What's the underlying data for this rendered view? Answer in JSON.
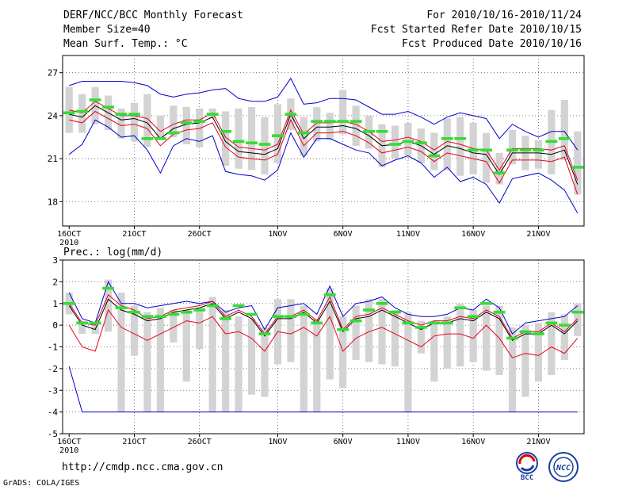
{
  "header": {
    "title": "DERF/NCC/BCC Monthly Forecast",
    "member_size": "Member Size=40",
    "variable": "Mean Surf. Temp.: °C",
    "forecast_period": "For 2010/10/16-2010/11/24",
    "fcst_started": "Fcst Started Refer Date 2010/10/15",
    "fcst_produced": "Fcst Produced Date 2010/10/16"
  },
  "footer": {
    "url": "http://cmdp.ncc.cma.gov.cn",
    "credit": "GrADS: COLA/IGES",
    "logo_left_text": "BCC",
    "logo_right_text": "NCC"
  },
  "colors": {
    "max_min_line": "#0000cc",
    "spread_line": "#e8001c",
    "mean_line": "#000000",
    "obs_marker": "#33dd33",
    "box": "#d3d3d3"
  },
  "chart_data": [
    {
      "id": "temp",
      "type": "box",
      "title": "",
      "ylabel": "Mean Surf. Temp.: °C",
      "ylim": [
        16.3,
        28.2
      ],
      "yticks": [
        18,
        21,
        24,
        27
      ],
      "xlim": [
        0,
        40
      ],
      "x_tick_labels": [
        {
          "x": 0.5,
          "label": "16OCT"
        },
        {
          "x": 5.5,
          "label": "21OCT"
        },
        {
          "x": 10.5,
          "label": "26OCT"
        },
        {
          "x": 16.5,
          "label": "1NOV"
        },
        {
          "x": 21.5,
          "label": "6NOV"
        },
        {
          "x": 26.5,
          "label": "11NOV"
        },
        {
          "x": 31.5,
          "label": "16NOV"
        },
        {
          "x": 36.5,
          "label": "21NOV"
        }
      ],
      "x_sub_label": "2010",
      "series": {
        "max": [
          26.1,
          26.4,
          26.4,
          26.4,
          26.4,
          26.3,
          26.1,
          25.5,
          25.3,
          25.5,
          25.6,
          25.8,
          25.9,
          25.2,
          25.0,
          25.0,
          25.3,
          26.6,
          24.8,
          24.9,
          25.2,
          25.2,
          25.1,
          24.6,
          24.1,
          24.1,
          24.3,
          23.9,
          23.4,
          23.9,
          24.2,
          24.0,
          23.8,
          22.4,
          23.4,
          22.9,
          22.5,
          22.9,
          22.9,
          21.6
        ],
        "upper": [
          24.4,
          24.2,
          25.0,
          24.5,
          24.0,
          24.0,
          23.8,
          22.9,
          23.4,
          23.7,
          23.7,
          24.2,
          22.5,
          21.8,
          21.7,
          21.6,
          22.0,
          24.4,
          22.7,
          23.5,
          23.5,
          23.6,
          23.4,
          22.9,
          22.2,
          22.3,
          22.5,
          22.2,
          21.6,
          22.2,
          22.0,
          21.7,
          21.6,
          20.2,
          21.7,
          21.7,
          21.7,
          21.6,
          21.9,
          19.5
        ],
        "mean": [
          24.1,
          23.9,
          24.7,
          24.2,
          23.7,
          23.8,
          23.5,
          22.4,
          23.1,
          23.4,
          23.5,
          23.9,
          22.2,
          21.5,
          21.4,
          21.3,
          21.7,
          24.1,
          22.4,
          23.2,
          23.2,
          23.3,
          23.1,
          22.6,
          21.9,
          22.0,
          22.2,
          21.9,
          21.3,
          21.9,
          21.7,
          21.4,
          21.3,
          19.9,
          21.4,
          21.4,
          21.4,
          21.3,
          21.6,
          19.2
        ],
        "lower": [
          23.7,
          23.5,
          24.3,
          23.8,
          23.3,
          23.4,
          23.1,
          21.9,
          22.7,
          23.0,
          23.1,
          23.5,
          21.8,
          21.1,
          21.0,
          20.9,
          21.3,
          23.7,
          21.9,
          22.8,
          22.8,
          22.9,
          22.6,
          22.1,
          21.4,
          21.6,
          21.8,
          21.5,
          20.8,
          21.4,
          21.2,
          21.0,
          20.8,
          19.3,
          20.9,
          20.9,
          20.9,
          20.8,
          21.1,
          18.5
        ],
        "min": [
          21.3,
          22.0,
          23.7,
          23.2,
          22.5,
          22.6,
          21.6,
          20.0,
          21.9,
          22.4,
          22.2,
          22.6,
          20.1,
          19.9,
          19.8,
          19.5,
          20.2,
          22.8,
          21.1,
          22.4,
          22.4,
          22.0,
          21.6,
          21.4,
          20.5,
          20.9,
          21.2,
          20.7,
          19.7,
          20.4,
          19.4,
          19.7,
          19.2,
          17.9,
          19.6,
          19.8,
          20.0,
          19.5,
          18.8,
          17.2
        ],
        "box_top": [
          26.0,
          25.5,
          26.0,
          25.4,
          24.5,
          24.9,
          25.5,
          24.0,
          24.7,
          24.6,
          24.5,
          24.5,
          24.3,
          24.5,
          24.6,
          23.9,
          24.8,
          25.2,
          23.9,
          24.6,
          24.2,
          25.8,
          24.7,
          24.0,
          23.4,
          23.3,
          23.5,
          23.1,
          22.8,
          23.8,
          23.9,
          23.5,
          22.8,
          21.4,
          23.0,
          22.6,
          22.3,
          24.4,
          25.1,
          22.9
        ],
        "box_bottom": [
          22.8,
          22.8,
          23.4,
          23.0,
          22.4,
          22.2,
          21.8,
          22.4,
          22.5,
          22.0,
          21.8,
          23.8,
          20.5,
          20.3,
          20.2,
          19.9,
          20.7,
          23.0,
          21.2,
          22.2,
          22.3,
          22.7,
          21.9,
          21.7,
          20.4,
          21.0,
          21.2,
          20.7,
          20.2,
          20.2,
          19.8,
          19.9,
          19.3,
          19.2,
          20.6,
          20.2,
          20.3,
          19.9,
          20.9,
          18.5
        ],
        "obs": [
          24.2,
          24.3,
          25.1,
          24.6,
          24.1,
          24.1,
          22.4,
          22.4,
          22.8,
          23.5,
          23.6,
          24.1,
          22.9,
          22.2,
          22.1,
          22.0,
          22.6,
          24.1,
          22.8,
          23.6,
          23.6,
          23.6,
          23.6,
          22.9,
          22.9,
          22.0,
          22.2,
          22.1,
          21.2,
          22.4,
          22.4,
          21.6,
          21.6,
          20.0,
          21.6,
          21.6,
          21.6,
          22.2,
          22.4,
          20.4
        ]
      }
    },
    {
      "id": "prec",
      "type": "box",
      "title": "",
      "ylabel": "Prec.: log(mm/d)",
      "ylim": [
        -5,
        3
      ],
      "yticks": [
        -5,
        -4,
        -3,
        -2,
        -1,
        0,
        1,
        2,
        3
      ],
      "xlim": [
        0,
        40
      ],
      "x_tick_labels": [
        {
          "x": 0.5,
          "label": "16OCT"
        },
        {
          "x": 5.5,
          "label": "21OCT"
        },
        {
          "x": 10.5,
          "label": "26OCT"
        },
        {
          "x": 16.5,
          "label": "1NOV"
        },
        {
          "x": 21.5,
          "label": "6NOV"
        },
        {
          "x": 26.5,
          "label": "11NOV"
        },
        {
          "x": 31.5,
          "label": "16NOV"
        },
        {
          "x": 36.5,
          "label": "21NOV"
        }
      ],
      "x_sub_label": "2010",
      "series": {
        "max": [
          1.5,
          0.3,
          0.1,
          2.0,
          1.0,
          1.0,
          0.8,
          0.9,
          1.0,
          1.1,
          1.0,
          1.1,
          0.6,
          0.8,
          0.9,
          -0.2,
          0.8,
          0.9,
          1.0,
          0.5,
          1.8,
          0.4,
          1.0,
          1.1,
          1.3,
          0.8,
          0.5,
          0.4,
          0.4,
          0.5,
          0.8,
          0.7,
          1.2,
          0.8,
          -0.4,
          0.1,
          0.2,
          0.3,
          0.4,
          0.9
        ],
        "upper": [
          1.0,
          0.1,
          0.0,
          1.4,
          0.9,
          0.7,
          0.3,
          0.4,
          0.7,
          0.8,
          0.9,
          1.1,
          0.4,
          0.7,
          0.4,
          -0.4,
          0.4,
          0.4,
          0.7,
          0.2,
          1.3,
          -0.2,
          0.4,
          0.5,
          0.8,
          0.5,
          0.2,
          0.0,
          0.2,
          0.2,
          0.4,
          0.3,
          0.7,
          0.4,
          -0.6,
          -0.3,
          -0.3,
          0.1,
          -0.3,
          0.3
        ],
        "mean": [
          0.9,
          0.0,
          -0.2,
          1.2,
          0.7,
          0.5,
          0.2,
          0.3,
          0.6,
          0.7,
          0.8,
          1.0,
          0.3,
          0.6,
          0.3,
          -0.5,
          0.3,
          0.3,
          0.6,
          0.1,
          1.1,
          -0.3,
          0.3,
          0.4,
          0.7,
          0.4,
          0.1,
          -0.2,
          0.1,
          0.1,
          0.3,
          0.2,
          0.6,
          0.3,
          -0.7,
          -0.4,
          -0.4,
          0.0,
          -0.4,
          0.2
        ],
        "lower": [
          0.0,
          -1.0,
          -1.2,
          0.7,
          -0.1,
          -0.4,
          -0.7,
          -0.4,
          -0.1,
          0.2,
          0.1,
          0.4,
          -0.4,
          -0.3,
          -0.6,
          -1.2,
          -0.3,
          -0.4,
          -0.1,
          -0.5,
          0.4,
          -1.2,
          -0.6,
          -0.3,
          -0.1,
          -0.4,
          -0.7,
          -1.0,
          -0.5,
          -0.4,
          -0.4,
          -0.6,
          0.0,
          -0.6,
          -1.5,
          -1.3,
          -1.4,
          -1.0,
          -1.3,
          -0.6
        ],
        "min": [
          -1.9,
          -4.0,
          -4.0,
          -4.0,
          -4.0,
          -4.0,
          -4.0,
          -4.0,
          -4.0,
          -4.0,
          -4.0,
          -4.0,
          -4.0,
          -4.0,
          -4.0,
          -4.0,
          -4.0,
          -4.0,
          -4.0,
          -4.0,
          -4.0,
          -4.0,
          -4.0,
          -4.0,
          -4.0,
          -4.0,
          -4.0,
          -4.0,
          -4.0,
          -4.0,
          -4.0,
          -4.0,
          -4.0,
          -4.0,
          -4.0,
          -4.0,
          -4.0,
          -4.0,
          -4.0,
          -4.0
        ],
        "box_top": [
          1.5,
          0.2,
          0.1,
          2.1,
          1.5,
          0.9,
          0.6,
          0.8,
          0.7,
          0.7,
          0.8,
          1.3,
          0.7,
          0.4,
          0.3,
          -0.1,
          1.2,
          1.2,
          0.9,
          0.3,
          1.7,
          0.4,
          0.9,
          1.2,
          1.2,
          0.7,
          0.6,
          0.2,
          0.2,
          0.4,
          1.0,
          0.7,
          0.9,
          0.9,
          -0.1,
          0.0,
          0.1,
          0.6,
          0.5,
          1.0
        ],
        "box_bottom": [
          0.5,
          -0.4,
          -0.4,
          -0.3,
          -4.0,
          -1.4,
          -4.0,
          -4.0,
          -0.8,
          -2.6,
          -1.1,
          -4.0,
          -4.0,
          -4.0,
          -3.2,
          -3.3,
          -1.8,
          -1.7,
          -4.0,
          -4.0,
          -2.5,
          -2.9,
          -1.6,
          -1.7,
          -1.8,
          -1.9,
          -4.0,
          -1.3,
          -2.6,
          -2.0,
          -1.9,
          -1.7,
          -2.1,
          -2.3,
          -4.0,
          -3.3,
          -2.6,
          -2.3,
          -1.6,
          -0.5
        ],
        "obs": [
          1.0,
          0.1,
          0.1,
          1.7,
          0.8,
          0.6,
          0.4,
          0.4,
          0.5,
          0.6,
          0.7,
          0.9,
          0.3,
          0.9,
          0.5,
          -0.4,
          0.4,
          0.4,
          0.5,
          0.1,
          1.4,
          -0.2,
          0.2,
          0.7,
          1.0,
          0.6,
          0.1,
          -0.1,
          0.1,
          0.1,
          0.8,
          0.4,
          1.0,
          0.6,
          -0.6,
          -0.3,
          -0.4,
          0.1,
          0.0,
          0.6
        ]
      }
    }
  ]
}
